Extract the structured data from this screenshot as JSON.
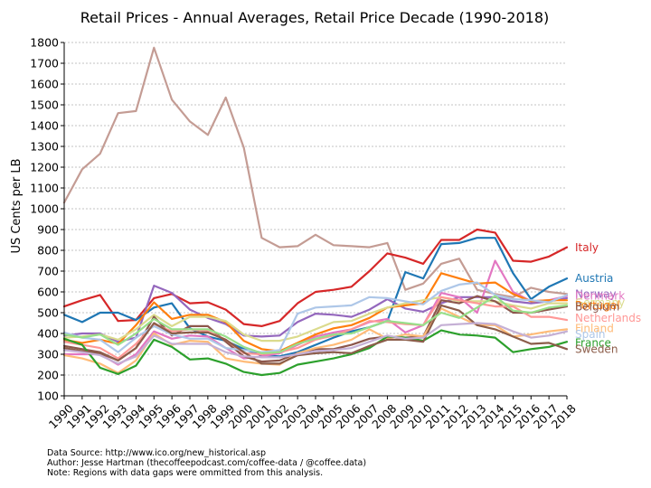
{
  "chart_data": {
    "type": "line",
    "title": "Retail Prices - Annual Averages, Retail Price Decade (1990-2018)",
    "xlabel": "",
    "ylabel": "US Cents per LB",
    "x": [
      1990,
      1991,
      1992,
      1993,
      1994,
      1995,
      1996,
      1997,
      1998,
      1999,
      2000,
      2001,
      2002,
      2003,
      2004,
      2005,
      2006,
      2007,
      2008,
      2009,
      2010,
      2011,
      2012,
      2013,
      2014,
      2015,
      2016,
      2017,
      2018
    ],
    "xlim": [
      1990,
      2018
    ],
    "ylim": [
      100,
      1800
    ],
    "yticks": [
      100,
      200,
      300,
      400,
      500,
      600,
      700,
      800,
      900,
      1000,
      1100,
      1200,
      1300,
      1400,
      1500,
      1600,
      1700,
      1800
    ],
    "grid": true,
    "legend_placement": "right, labels at line ends",
    "series": [
      {
        "name": "",
        "color": "#c49c94",
        "labeled": false,
        "values": [
          1030,
          1190,
          1265,
          1460,
          1470,
          1775,
          1525,
          1420,
          1355,
          1535,
          1295,
          860,
          815,
          820,
          875,
          825,
          820,
          815,
          835,
          610,
          640,
          735,
          760,
          610,
          590,
          575,
          620,
          600,
          590
        ]
      },
      {
        "name": "Italy",
        "color": "#d62728",
        "labeled": true,
        "values": [
          530,
          560,
          585,
          460,
          465,
          570,
          590,
          545,
          550,
          515,
          445,
          435,
          460,
          545,
          600,
          610,
          625,
          700,
          785,
          765,
          735,
          850,
          850,
          900,
          885,
          750,
          745,
          770,
          815
        ]
      },
      {
        "name": "Austria",
        "color": "#1f77b4",
        "labeled": true,
        "values": [
          490,
          455,
          500,
          500,
          465,
          525,
          545,
          425,
          385,
          365,
          325,
          295,
          290,
          310,
          345,
          380,
          410,
          430,
          460,
          695,
          665,
          830,
          835,
          860,
          860,
          690,
          565,
          625,
          665
        ]
      },
      {
        "name": "Norway",
        "color": "#9467bd",
        "labeled": true,
        "values": [
          390,
          400,
          400,
          360,
          380,
          630,
          595,
          515,
          475,
          445,
          390,
          385,
          390,
          455,
          495,
          490,
          480,
          515,
          565,
          520,
          505,
          545,
          575,
          575,
          575,
          555,
          545,
          555,
          570
        ]
      },
      {
        "name": "Denmark",
        "color": "#e377c2",
        "labeled": true,
        "values": [
          300,
          300,
          300,
          250,
          300,
          410,
          375,
          390,
          385,
          330,
          280,
          290,
          305,
          345,
          385,
          405,
          420,
          455,
          470,
          405,
          440,
          595,
          575,
          500,
          750,
          600,
          555,
          560,
          580
        ]
      },
      {
        "name": "Portugal",
        "color": "#ff7f0e",
        "labeled": true,
        "values": [
          370,
          355,
          370,
          350,
          440,
          550,
          470,
          490,
          490,
          455,
          365,
          325,
          315,
          355,
          395,
          425,
          440,
          475,
          525,
          535,
          545,
          690,
          665,
          640,
          645,
          590,
          555,
          560,
          560
        ]
      },
      {
        "name": "Germany",
        "color": "#dbdb8d",
        "labeled": true,
        "values": [
          380,
          385,
          395,
          370,
          420,
          490,
          435,
          480,
          480,
          460,
          395,
          365,
          365,
          385,
          420,
          455,
          460,
          495,
          525,
          545,
          560,
          575,
          555,
          555,
          555,
          535,
          520,
          545,
          545
        ]
      },
      {
        "name": "Belgium",
        "color": "#8c564b",
        "labeled": true,
        "values": [
          340,
          325,
          310,
          270,
          330,
          480,
          390,
          435,
          435,
          360,
          290,
          265,
          270,
          305,
          325,
          325,
          345,
          375,
          385,
          380,
          385,
          560,
          545,
          580,
          555,
          500,
          500,
          515,
          530
        ]
      },
      {
        "name": "Netherlands",
        "color": "#ff9896",
        "labeled": true,
        "values": [
          360,
          345,
          330,
          280,
          350,
          445,
          410,
          420,
          410,
          370,
          305,
          300,
          310,
          330,
          370,
          390,
          420,
          460,
          455,
          445,
          440,
          575,
          560,
          545,
          530,
          530,
          480,
          480,
          465
        ]
      },
      {
        "name": "Finland",
        "color": "#ffbb78",
        "labeled": true,
        "values": [
          295,
          280,
          255,
          210,
          270,
          400,
          345,
          365,
          360,
          280,
          265,
          255,
          250,
          305,
          330,
          345,
          370,
          420,
          375,
          395,
          385,
          520,
          480,
          440,
          440,
          385,
          395,
          410,
          420
        ]
      },
      {
        "name": "Spain",
        "color": "#aec7e8",
        "labeled": true,
        "values": [
          405,
          380,
          370,
          310,
          380,
          435,
          395,
          375,
          375,
          330,
          320,
          310,
          320,
          495,
          525,
          530,
          535,
          575,
          570,
          555,
          540,
          605,
          635,
          645,
          585,
          565,
          560,
          550,
          585
        ]
      },
      {
        "name": "France",
        "color": "#2ca02c",
        "labeled": true,
        "values": [
          375,
          345,
          235,
          205,
          245,
          370,
          335,
          275,
          280,
          255,
          215,
          200,
          210,
          250,
          265,
          280,
          300,
          330,
          385,
          380,
          365,
          415,
          395,
          390,
          380,
          310,
          325,
          335,
          360
        ]
      },
      {
        "name": "Sweden",
        "color": "#8c5d4a",
        "labeled": true,
        "values": [
          330,
          315,
          305,
          270,
          330,
          450,
          400,
          405,
          405,
          370,
          310,
          255,
          255,
          295,
          305,
          310,
          305,
          340,
          370,
          370,
          360,
          535,
          510,
          440,
          420,
          385,
          350,
          355,
          325
        ]
      },
      {
        "name": "",
        "color": "#98df8a",
        "labeled": false,
        "values": [
          395,
          380,
          395,
          345,
          400,
          470,
          420,
          420,
          420,
          385,
          335,
          305,
          310,
          350,
          375,
          395,
          400,
          430,
          460,
          450,
          440,
          500,
          475,
          525,
          580,
          510,
          500,
          525,
          535
        ]
      },
      {
        "name": "",
        "color": "#c5b0d5",
        "labeled": false,
        "values": [
          320,
          310,
          295,
          255,
          290,
          390,
          350,
          350,
          350,
          310,
          290,
          285,
          285,
          300,
          315,
          320,
          330,
          360,
          390,
          375,
          380,
          440,
          445,
          450,
          445,
          410,
          380,
          390,
          410
        ]
      }
    ],
    "legend_labels": [
      {
        "name": "Italy",
        "y": 813
      },
      {
        "name": "Austria",
        "y": 665
      },
      {
        "name": "Norway",
        "y": 590
      },
      {
        "name": "Denmark",
        "y": 580
      },
      {
        "name": "Germany",
        "y": 548
      },
      {
        "name": "Portugal",
        "y": 535
      },
      {
        "name": "Belgium",
        "y": 528
      },
      {
        "name": "Netherlands",
        "y": 475
      },
      {
        "name": "Finland",
        "y": 424
      },
      {
        "name": "Spain",
        "y": 395
      },
      {
        "name": "France",
        "y": 355
      },
      {
        "name": "Sweden",
        "y": 325
      }
    ]
  },
  "notes": {
    "source": "Data Source: http://www.ico.org/new_historical.asp",
    "author": "Author: Jesse Hartman (thecoffeepodcast.com/coffee-data / @coffee.data)",
    "note": "Note: Regions with data gaps were ommitted from this analysis."
  }
}
